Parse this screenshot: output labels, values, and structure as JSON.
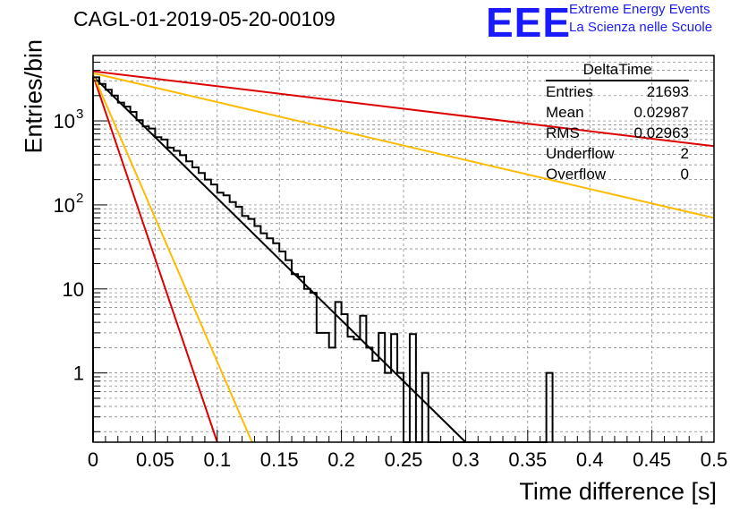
{
  "header": {
    "title": "CAGL-01-2019-05-20-00109",
    "logo_text": "EEE",
    "logo_line1": "Extreme Energy Events",
    "logo_line2": "La Scienza nelle Scuole",
    "logo_color": "#1a1aff"
  },
  "stats": {
    "title": "DeltaTime",
    "rows": [
      {
        "label": "Entries",
        "value": "21693"
      },
      {
        "label": "Mean",
        "value": "0.02987"
      },
      {
        "label": "RMS",
        "value": "0.02963"
      },
      {
        "label": "Underflow",
        "value": "2"
      },
      {
        "label": "Overflow",
        "value": "0"
      }
    ]
  },
  "chart_data": {
    "type": "line",
    "xlabel": "Time difference [s]",
    "ylabel": "Entries/bin",
    "xlim": [
      0,
      0.5
    ],
    "ylim": [
      0.15,
      6000
    ],
    "yscale": "log",
    "grid": true,
    "x_ticks": [
      "0",
      "0.05",
      "0.1",
      "0.15",
      "0.2",
      "0.25",
      "0.3",
      "0.35",
      "0.4",
      "0.45",
      "0.5"
    ],
    "y_ticks": [
      {
        "value": 1,
        "base": "1",
        "exp": ""
      },
      {
        "value": 10,
        "base": "10",
        "exp": ""
      },
      {
        "value": 100,
        "base": "10",
        "exp": "2"
      },
      {
        "value": 1000,
        "base": "10",
        "exp": "3"
      }
    ],
    "histogram": {
      "bin_width": 0.005,
      "color": "#000000",
      "counts": [
        3300,
        2750,
        2350,
        2000,
        1650,
        1480,
        1280,
        1020,
        860,
        810,
        640,
        600,
        480,
        440,
        390,
        330,
        280,
        240,
        200,
        175,
        140,
        130,
        108,
        95,
        74,
        68,
        56,
        46,
        40,
        35,
        28,
        22,
        15,
        14,
        10,
        9,
        3,
        3,
        2,
        7,
        5,
        2.7,
        2.5,
        4.8,
        2,
        1.4,
        3,
        1,
        2.9,
        1,
        0.12,
        2.9,
        0.12,
        1,
        0.12,
        0.12,
        0.12,
        0.12,
        0.12,
        0.12,
        0.12,
        0.12,
        0.12,
        0.12,
        0.12,
        0.12,
        0.12,
        0.12,
        0.12,
        0.12,
        0.12,
        0.12,
        0.12,
        1
      ]
    },
    "series": [
      {
        "x": [
          0,
          0.3
        ],
        "y": [
          3400,
          0.15
        ],
        "color": "#000000"
      },
      {
        "x": [
          0,
          0.1
        ],
        "y": [
          3500,
          0.15
        ],
        "color": "#dd0000"
      },
      {
        "x": [
          0,
          0.5
        ],
        "y": [
          3900,
          500
        ],
        "color": "#dd0000"
      },
      {
        "x": [
          0,
          0.128
        ],
        "y": [
          3600,
          0.15
        ],
        "color": "#ffbb00"
      },
      {
        "x": [
          0,
          0.5
        ],
        "y": [
          3700,
          70
        ],
        "color": "#ffbb00"
      }
    ]
  }
}
